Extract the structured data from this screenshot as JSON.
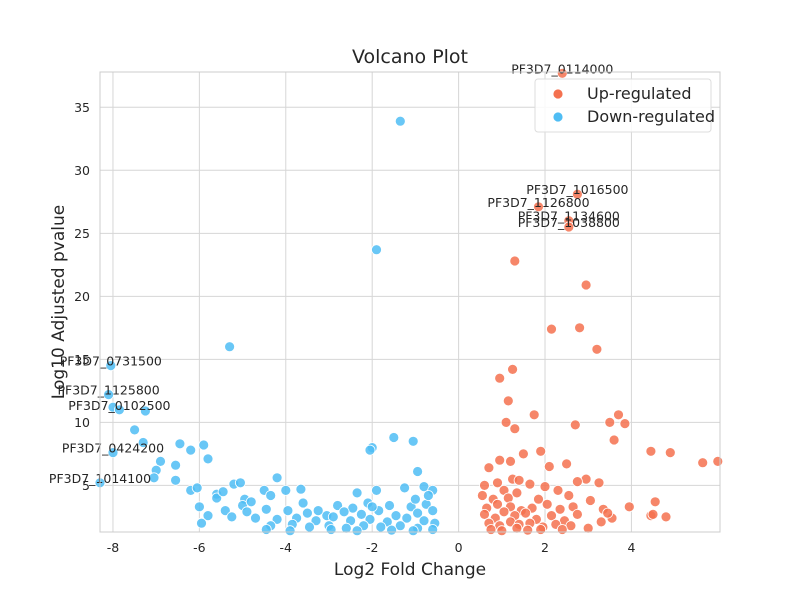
{
  "chart_data": {
    "type": "scatter",
    "title": "Volcano Plot",
    "xlabel": "Log2 Fold Change",
    "ylabel": "Log10 Adjusted pvalue",
    "xlim": [
      -8.3,
      6.05
    ],
    "ylim": [
      1.3,
      37.8
    ],
    "xticks": [
      -8,
      -6,
      -4,
      -2,
      0,
      2,
      4
    ],
    "yticks": [
      5,
      10,
      15,
      20,
      25,
      30,
      35
    ],
    "grid": true,
    "legend_position": "top-right",
    "series": [
      {
        "name": "Up-regulated",
        "color": "#f4714f",
        "points": [
          [
            2.4,
            37.7
          ],
          [
            2.75,
            28.1
          ],
          [
            1.85,
            27.1
          ],
          [
            2.55,
            26.0
          ],
          [
            2.55,
            25.5
          ],
          [
            1.3,
            22.8
          ],
          [
            2.95,
            20.9
          ],
          [
            2.15,
            17.4
          ],
          [
            2.8,
            17.5
          ],
          [
            3.2,
            15.8
          ],
          [
            1.25,
            14.2
          ],
          [
            0.95,
            13.5
          ],
          [
            1.15,
            11.7
          ],
          [
            1.75,
            10.6
          ],
          [
            3.7,
            10.6
          ],
          [
            3.5,
            10.0
          ],
          [
            3.85,
            9.9
          ],
          [
            1.1,
            10.0
          ],
          [
            1.3,
            9.5
          ],
          [
            2.7,
            9.8
          ],
          [
            3.6,
            8.6
          ],
          [
            1.9,
            7.7
          ],
          [
            1.5,
            7.5
          ],
          [
            4.45,
            7.7
          ],
          [
            4.9,
            7.6
          ],
          [
            5.65,
            6.8
          ],
          [
            6.0,
            6.9
          ],
          [
            0.95,
            7.0
          ],
          [
            0.7,
            6.4
          ],
          [
            1.2,
            6.9
          ],
          [
            2.1,
            6.5
          ],
          [
            2.5,
            6.7
          ],
          [
            2.95,
            5.5
          ],
          [
            0.6,
            5.0
          ],
          [
            0.9,
            5.2
          ],
          [
            1.05,
            4.6
          ],
          [
            1.25,
            5.5
          ],
          [
            1.4,
            5.4
          ],
          [
            1.65,
            5.1
          ],
          [
            2.0,
            4.9
          ],
          [
            2.3,
            4.6
          ],
          [
            2.75,
            5.3
          ],
          [
            3.25,
            5.2
          ],
          [
            0.55,
            4.2
          ],
          [
            0.8,
            3.9
          ],
          [
            1.15,
            4.0
          ],
          [
            1.35,
            4.4
          ],
          [
            1.85,
            3.9
          ],
          [
            2.55,
            4.2
          ],
          [
            3.05,
            3.8
          ],
          [
            4.55,
            3.7
          ],
          [
            0.65,
            3.2
          ],
          [
            0.9,
            3.5
          ],
          [
            1.2,
            3.3
          ],
          [
            1.45,
            3.0
          ],
          [
            1.7,
            3.2
          ],
          [
            2.05,
            3.5
          ],
          [
            2.35,
            3.1
          ],
          [
            2.65,
            3.3
          ],
          [
            3.35,
            3.1
          ],
          [
            3.95,
            3.3
          ],
          [
            0.6,
            2.7
          ],
          [
            0.85,
            2.4
          ],
          [
            1.05,
            2.9
          ],
          [
            1.3,
            2.6
          ],
          [
            1.55,
            2.8
          ],
          [
            1.8,
            2.3
          ],
          [
            2.15,
            2.6
          ],
          [
            2.45,
            2.2
          ],
          [
            2.75,
            2.7
          ],
          [
            3.55,
            2.4
          ],
          [
            4.45,
            2.6
          ],
          [
            4.8,
            2.5
          ],
          [
            0.7,
            2.0
          ],
          [
            0.95,
            1.8
          ],
          [
            1.2,
            2.1
          ],
          [
            1.4,
            1.9
          ],
          [
            1.65,
            2.0
          ],
          [
            1.95,
            1.7
          ],
          [
            2.25,
            1.9
          ],
          [
            2.6,
            1.8
          ],
          [
            3.3,
            2.1
          ],
          [
            4.5,
            2.7
          ],
          [
            0.75,
            1.5
          ],
          [
            1.0,
            1.4
          ],
          [
            1.35,
            1.6
          ],
          [
            1.6,
            1.45
          ],
          [
            1.9,
            1.5
          ],
          [
            2.4,
            1.5
          ],
          [
            3.0,
            1.6
          ],
          [
            3.45,
            2.8
          ]
        ]
      },
      {
        "name": "Down-regulated",
        "color": "#4fbdf4",
        "points": [
          [
            -1.35,
            33.9
          ],
          [
            -1.9,
            23.7
          ],
          [
            -5.3,
            16.0
          ],
          [
            -8.05,
            14.5
          ],
          [
            -8.1,
            12.2
          ],
          [
            -8.0,
            11.2
          ],
          [
            -7.85,
            11.0
          ],
          [
            -7.25,
            10.9
          ],
          [
            -7.5,
            9.4
          ],
          [
            -7.3,
            8.4
          ],
          [
            -6.45,
            8.3
          ],
          [
            -6.2,
            7.8
          ],
          [
            -5.9,
            8.2
          ],
          [
            -8.0,
            7.6
          ],
          [
            -5.8,
            7.1
          ],
          [
            -6.9,
            6.9
          ],
          [
            -7.0,
            6.2
          ],
          [
            -6.55,
            6.6
          ],
          [
            -7.05,
            5.6
          ],
          [
            -6.55,
            5.4
          ],
          [
            -8.3,
            5.2
          ],
          [
            -1.5,
            8.8
          ],
          [
            -1.05,
            8.5
          ],
          [
            -2.0,
            8.0
          ],
          [
            -2.05,
            7.8
          ],
          [
            -0.95,
            6.1
          ],
          [
            -4.2,
            5.6
          ],
          [
            -5.2,
            5.1
          ],
          [
            -5.05,
            5.2
          ],
          [
            -4.5,
            4.6
          ],
          [
            -4.0,
            4.6
          ],
          [
            -3.65,
            4.7
          ],
          [
            -2.35,
            4.4
          ],
          [
            -1.9,
            4.6
          ],
          [
            -1.25,
            4.8
          ],
          [
            -0.8,
            4.9
          ],
          [
            -0.6,
            4.6
          ],
          [
            -6.2,
            4.6
          ],
          [
            -5.6,
            4.3
          ],
          [
            -5.6,
            4.0
          ],
          [
            -4.95,
            3.9
          ],
          [
            -4.35,
            4.2
          ],
          [
            -3.6,
            3.6
          ],
          [
            -2.8,
            3.4
          ],
          [
            -2.45,
            3.2
          ],
          [
            -2.1,
            3.6
          ],
          [
            -1.6,
            3.4
          ],
          [
            -1.1,
            3.3
          ],
          [
            -0.75,
            3.5
          ],
          [
            -6.0,
            3.3
          ],
          [
            -5.4,
            3.0
          ],
          [
            -5.0,
            3.4
          ],
          [
            -4.45,
            3.1
          ],
          [
            -3.95,
            3.0
          ],
          [
            -3.5,
            2.8
          ],
          [
            -3.05,
            2.6
          ],
          [
            -2.65,
            2.9
          ],
          [
            -2.25,
            2.7
          ],
          [
            -1.85,
            3.0
          ],
          [
            -1.45,
            2.6
          ],
          [
            -0.95,
            2.8
          ],
          [
            -0.6,
            3.0
          ],
          [
            -5.8,
            2.6
          ],
          [
            -5.25,
            2.5
          ],
          [
            -4.7,
            2.4
          ],
          [
            -4.2,
            2.3
          ],
          [
            -3.75,
            2.4
          ],
          [
            -3.3,
            2.2
          ],
          [
            -2.9,
            2.5
          ],
          [
            -2.5,
            2.2
          ],
          [
            -2.05,
            2.3
          ],
          [
            -1.65,
            2.1
          ],
          [
            -1.2,
            2.4
          ],
          [
            -0.8,
            2.2
          ],
          [
            -0.55,
            2.0
          ],
          [
            -5.95,
            2.0
          ],
          [
            -4.35,
            1.8
          ],
          [
            -3.85,
            1.9
          ],
          [
            -3.45,
            1.7
          ],
          [
            -3.0,
            1.8
          ],
          [
            -2.6,
            1.6
          ],
          [
            -2.2,
            1.8
          ],
          [
            -1.8,
            1.7
          ],
          [
            -1.35,
            1.8
          ],
          [
            -0.95,
            1.6
          ],
          [
            -0.6,
            1.5
          ],
          [
            -4.45,
            1.5
          ],
          [
            -3.9,
            1.4
          ],
          [
            -2.95,
            1.5
          ],
          [
            -2.35,
            1.4
          ],
          [
            -1.55,
            1.45
          ],
          [
            -1.05,
            1.4
          ],
          [
            -6.05,
            4.8
          ],
          [
            -5.45,
            4.5
          ],
          [
            -4.8,
            3.7
          ],
          [
            -3.25,
            3.0
          ],
          [
            -2.0,
            3.3
          ],
          [
            -1.0,
            3.9
          ],
          [
            -0.7,
            4.2
          ],
          [
            -4.9,
            2.9
          ]
        ]
      }
    ],
    "annotations": [
      {
        "text": "PF3D7_0114000",
        "x": 2.4,
        "y": 37.7
      },
      {
        "text": "PF3D7_1016500",
        "x": 2.75,
        "y": 28.1
      },
      {
        "text": "PF3D7_1126800",
        "x": 1.85,
        "y": 27.1
      },
      {
        "text": "PF3D7_1134600",
        "x": 2.55,
        "y": 26.0
      },
      {
        "text": "PF3D7_1038800",
        "x": 2.55,
        "y": 25.5
      },
      {
        "text": "PF3D7_0731500",
        "x": -8.05,
        "y": 14.5
      },
      {
        "text": "PF3D7_1125800",
        "x": -8.1,
        "y": 12.2
      },
      {
        "text": "PF3D7_0102500",
        "x": -7.85,
        "y": 11.0
      },
      {
        "text": "PF3D7_0424200",
        "x": -8.0,
        "y": 7.6
      },
      {
        "text": "PF3D7_1014100",
        "x": -8.3,
        "y": 5.2
      }
    ]
  }
}
